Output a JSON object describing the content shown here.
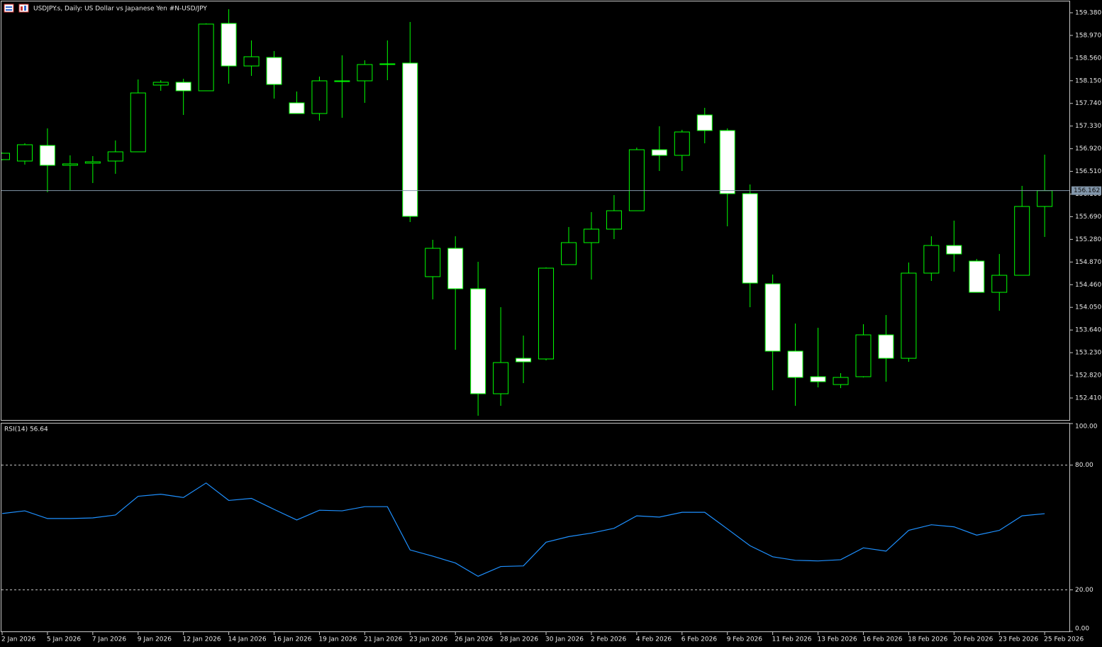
{
  "chart_data": [
    {
      "type": "candlestick",
      "title": "USDJPY.s, Daily:  US Dollar vs  Japanese Yen #N-USD/JPY",
      "categories": [
        "2 Jan 2026",
        null,
        "5 Jan 2026",
        null,
        "7 Jan 2026",
        null,
        "9 Jan 2026",
        null,
        "12 Jan 2026",
        null,
        "14 Jan 2026",
        null,
        "16 Jan 2026",
        null,
        "19 Jan 2026",
        null,
        "21 Jan 2026",
        null,
        "23 Jan 2026",
        null,
        "26 Jan 2026",
        null,
        "28 Jan 2026",
        null,
        "30 Jan 2026",
        null,
        "2 Feb 2026",
        null,
        "4 Feb 2026",
        null,
        "6 Feb 2026",
        null,
        "9 Feb 2026",
        null,
        "11 Feb 2026",
        null,
        "13 Feb 2026",
        null,
        "16 Feb 2026",
        null,
        "18 Feb 2026",
        null,
        "20 Feb 2026",
        null,
        "23 Feb 2026",
        null,
        "25 Feb 2026"
      ],
      "open": [
        156.723,
        156.697,
        156.979,
        156.62,
        156.659,
        156.697,
        156.864,
        158.071,
        158.122,
        157.968,
        159.187,
        158.417,
        158.571,
        157.75,
        157.557,
        158.135,
        158.148,
        158.443,
        158.469,
        154.605,
        155.118,
        154.386,
        152.487,
        153.128,
        153.116,
        154.823,
        155.221,
        155.465,
        155.798,
        156.902,
        156.8,
        157.531,
        157.249,
        156.107,
        154.476,
        153.257,
        152.795,
        152.653,
        152.795,
        153.552,
        153.128,
        154.669,
        155.169,
        154.887,
        154.322,
        154.63,
        155.875
      ],
      "high": [
        156.851,
        157.018,
        157.288,
        156.8,
        156.787,
        157.069,
        158.173,
        158.16,
        158.186,
        159.187,
        159.444,
        158.879,
        158.687,
        157.955,
        158.225,
        158.61,
        158.52,
        158.879,
        159.213,
        155.272,
        155.336,
        154.874,
        154.053,
        153.539,
        154.772,
        155.503,
        155.773,
        156.081,
        156.941,
        157.326,
        157.262,
        157.66,
        157.288,
        156.273,
        154.643,
        153.757,
        153.68,
        152.859,
        153.745,
        153.911,
        154.861,
        155.336,
        155.619,
        154.926,
        155.015,
        156.248,
        156.813
      ],
      "low": [
        156.71,
        156.633,
        156.132,
        156.171,
        156.299,
        156.466,
        156.864,
        157.968,
        157.531,
        157.968,
        158.096,
        158.238,
        157.827,
        157.557,
        157.429,
        157.48,
        157.75,
        158.16,
        155.593,
        154.194,
        153.282,
        152.089,
        152.268,
        152.679,
        153.09,
        154.823,
        154.553,
        155.285,
        155.798,
        156.517,
        156.517,
        157.018,
        155.516,
        154.053,
        152.551,
        152.268,
        152.602,
        152.589,
        152.782,
        152.705,
        153.064,
        154.528,
        154.695,
        154.322,
        153.988,
        154.63,
        155.324
      ],
      "close": [
        156.838,
        156.992,
        156.62,
        156.646,
        156.684,
        156.864,
        157.929,
        158.122,
        157.968,
        159.175,
        158.417,
        158.584,
        158.083,
        157.557,
        158.148,
        158.148,
        158.443,
        158.456,
        155.696,
        155.118,
        154.386,
        152.487,
        153.051,
        153.064,
        154.759,
        155.221,
        155.465,
        155.798,
        156.902,
        156.8,
        157.223,
        157.249,
        156.107,
        154.489,
        153.257,
        152.782,
        152.705,
        152.782,
        153.552,
        153.128,
        154.669,
        155.169,
        155.015,
        154.322,
        154.63,
        155.875,
        156.162
      ],
      "up_color": "#000000",
      "down_color": "#ffffff",
      "edge_color": "#00ff00",
      "ylim": [
        152.012,
        159.585
      ],
      "yticks": [
        {
          "value": 159.38,
          "label": "159.380"
        },
        {
          "value": 158.97,
          "label": "158.970"
        },
        {
          "value": 158.56,
          "label": "158.560"
        },
        {
          "value": 158.15,
          "label": "158.150"
        },
        {
          "value": 157.74,
          "label": "157.740"
        },
        {
          "value": 157.33,
          "label": "157.330"
        },
        {
          "value": 156.92,
          "label": "156.920"
        },
        {
          "value": 156.51,
          "label": "156.510"
        },
        {
          "value": 156.1,
          "label": "156.100"
        },
        {
          "value": 155.69,
          "label": "155.690"
        },
        {
          "value": 155.28,
          "label": "155.280"
        },
        {
          "value": 154.87,
          "label": "154.870"
        },
        {
          "value": 154.46,
          "label": "154.460"
        },
        {
          "value": 154.05,
          "label": "154.050"
        },
        {
          "value": 153.64,
          "label": "153.640"
        },
        {
          "value": 153.23,
          "label": "153.230"
        },
        {
          "value": 152.82,
          "label": "152.820"
        },
        {
          "value": 152.41,
          "label": "152.410"
        }
      ],
      "last_price": 156.162,
      "last_price_color": "#8296aa"
    },
    {
      "type": "line",
      "title": "RSI(14) 56.64",
      "values": [
        56.7,
        58.0,
        54.3,
        54.3,
        54.6,
        56.0,
        65.0,
        66.0,
        64.4,
        71.4,
        63.0,
        64.0,
        58.7,
        53.6,
        58.3,
        58.0,
        60.0,
        60.0,
        39.2,
        36.2,
        32.9,
        26.5,
        31.2,
        31.5,
        42.9,
        45.6,
        47.3,
        49.6,
        55.6,
        55.0,
        57.3,
        57.3,
        49.3,
        41.2,
        35.9,
        34.2,
        33.9,
        34.5,
        40.2,
        38.6,
        48.6,
        51.3,
        50.3,
        46.3,
        48.6,
        55.6,
        56.64
      ],
      "color": "#1e90ff",
      "ylim": [
        0,
        100
      ],
      "yticks": [
        {
          "value": 100,
          "label": "100.00"
        },
        {
          "value": 80,
          "label": "80.00"
        },
        {
          "value": 20,
          "label": "20.00"
        },
        {
          "value": 0,
          "label": "0.00"
        }
      ],
      "levels": [
        80,
        20
      ]
    }
  ]
}
